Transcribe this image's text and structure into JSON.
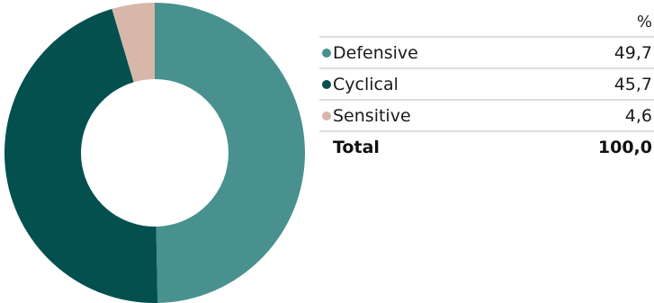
{
  "chart_data": {
    "type": "pie",
    "unit": "%",
    "categories": [
      "Defensive",
      "Cyclical",
      "Sensitive"
    ],
    "values": [
      49.7,
      45.7,
      4.6
    ],
    "value_labels": [
      "49,7",
      "45,7",
      "4,6"
    ],
    "colors": [
      "#48918e",
      "#03504f",
      "#d7b7a9"
    ],
    "total_label": "Total",
    "total_value": "100,0",
    "donut": true
  }
}
